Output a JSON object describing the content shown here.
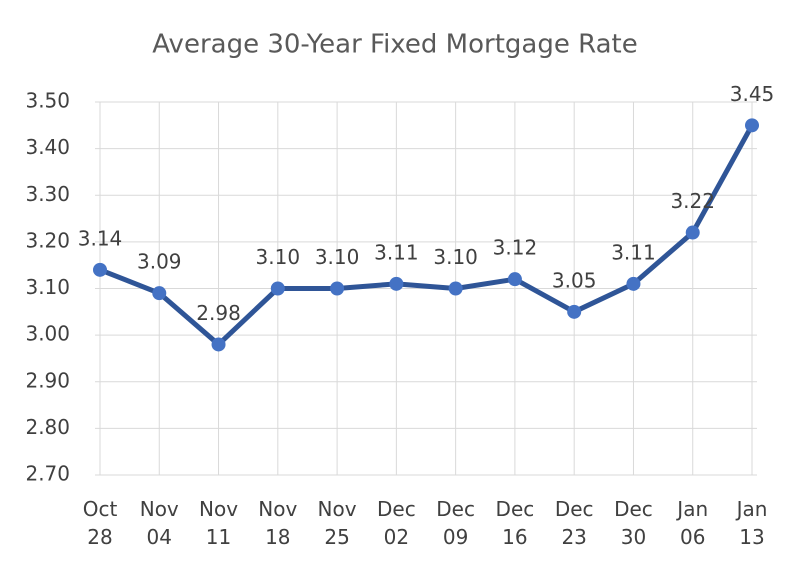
{
  "chart_data": {
    "type": "line",
    "title": "Average 30-Year Fixed Mortgage Rate",
    "categories": [
      "Oct 28",
      "Nov 04",
      "Nov 11",
      "Nov 18",
      "Nov 25",
      "Dec 02",
      "Dec 09",
      "Dec 16",
      "Dec 23",
      "Dec 30",
      "Jan 06",
      "Jan 13"
    ],
    "values": [
      3.14,
      3.09,
      2.98,
      3.1,
      3.1,
      3.11,
      3.1,
      3.12,
      3.05,
      3.11,
      3.22,
      3.45
    ],
    "value_labels": [
      "3.14",
      "3.09",
      "2.98",
      "3.10",
      "3.10",
      "3.11",
      "3.10",
      "3.12",
      "3.05",
      "3.11",
      "3.22",
      "3.45"
    ],
    "line_color": "#2f5597",
    "marker_color": "#4472c4",
    "ylim": [
      2.7,
      3.5
    ],
    "yticks": [
      {
        "value": 2.7,
        "label": "2.70"
      },
      {
        "value": 2.8,
        "label": "2.80"
      },
      {
        "value": 2.9,
        "label": "2.90"
      },
      {
        "value": 3.0,
        "label": "3.00"
      },
      {
        "value": 3.1,
        "label": "3.10"
      },
      {
        "value": 3.2,
        "label": "3.20"
      },
      {
        "value": 3.3,
        "label": "3.30"
      },
      {
        "value": 3.4,
        "label": "3.40"
      },
      {
        "value": 3.5,
        "label": "3.50"
      }
    ],
    "grid": true
  }
}
